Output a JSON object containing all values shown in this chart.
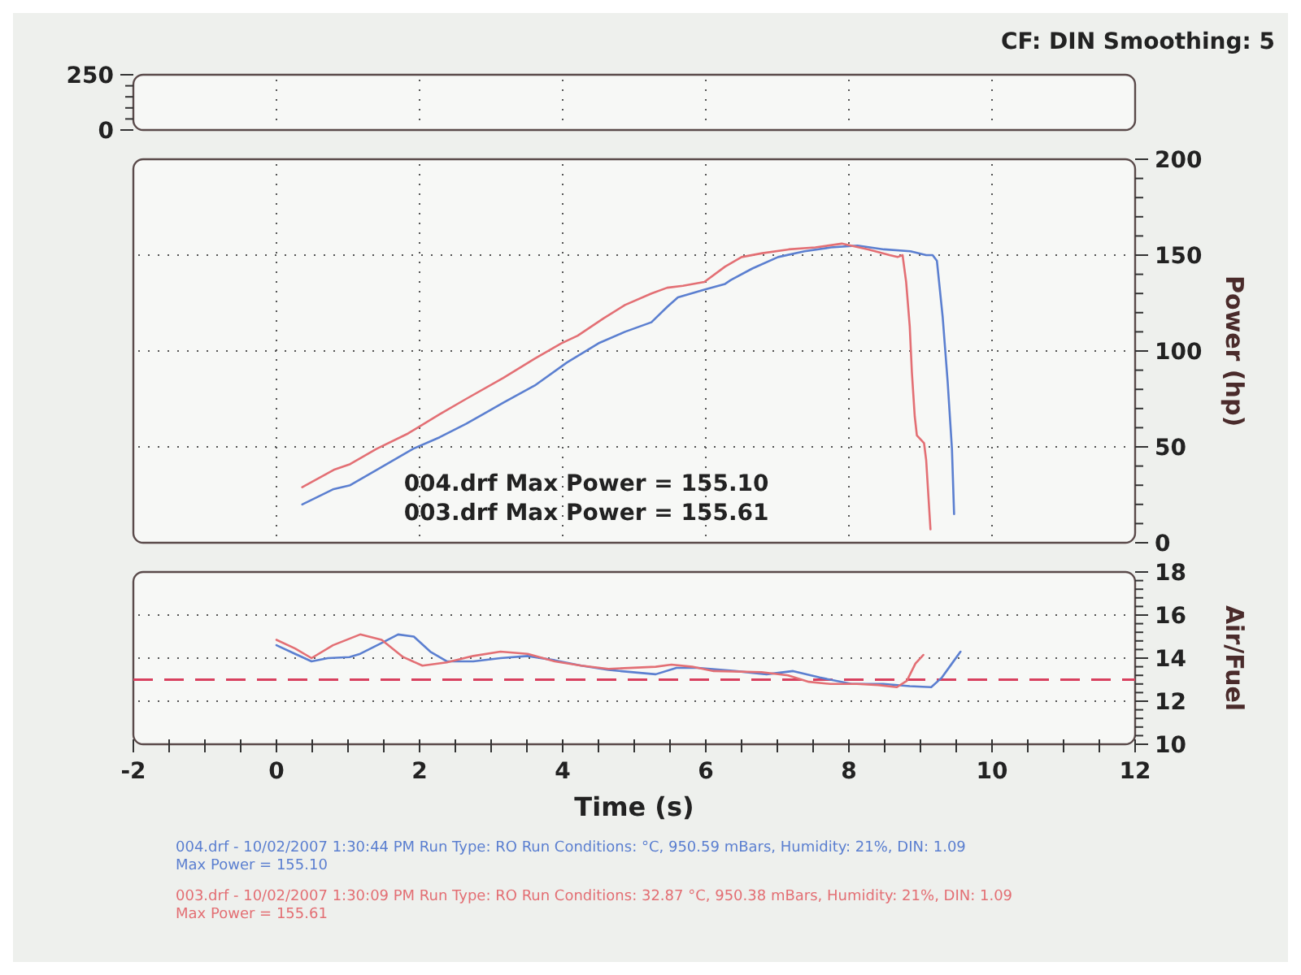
{
  "chart_data": [
    {
      "type": "line",
      "subtitle": "CF: DIN Smoothing: 5",
      "xlim": [
        -2,
        12
      ],
      "xticks": [
        -2,
        0,
        2,
        4,
        6,
        8,
        10,
        12
      ],
      "ylim": [
        0,
        250
      ],
      "yticks": [
        0,
        {
          "value": 50,
          "label": null
        },
        {
          "value": 100,
          "label": null
        },
        {
          "value": 150,
          "label": null
        },
        {
          "value": 200,
          "label": null
        },
        250
      ],
      "tick_labels": "y",
      "grid": "x"
    },
    {
      "type": "line",
      "ylabel": "Power (hp)",
      "xlim": [
        -2,
        12
      ],
      "xticks": [
        -2,
        0,
        2,
        4,
        6,
        8,
        10,
        12
      ],
      "ylim": [
        0,
        200
      ],
      "yticks": [
        0,
        {
          "value": 10,
          "label": null
        },
        {
          "value": 20,
          "label": null
        },
        {
          "value": 30,
          "label": null
        },
        {
          "value": 40,
          "label": null
        },
        50,
        {
          "value": 60,
          "label": null
        },
        {
          "value": 70,
          "label": null
        },
        {
          "value": 80,
          "label": null
        },
        {
          "value": 90,
          "label": null
        },
        100,
        {
          "value": 110,
          "label": null
        },
        {
          "value": 120,
          "label": null
        },
        {
          "value": 130,
          "label": null
        },
        {
          "value": 140,
          "label": null
        },
        150,
        {
          "value": 160,
          "label": null
        },
        {
          "value": 170,
          "label": null
        },
        {
          "value": 180,
          "label": null
        },
        {
          "value": 190,
          "label": null
        },
        200
      ],
      "tick_labels": "y",
      "grid": true,
      "annotations": [
        "004.drf Max Power = 155.10",
        "003.drf Max Power = 155.61"
      ],
      "series": [
        {
          "color": "#5b7fd0",
          "x": [
            0.36,
            0.8,
            1.03,
            1.4,
            1.91,
            2.28,
            2.65,
            3.17,
            3.61,
            4.06,
            4.5,
            4.87,
            5.24,
            5.46,
            5.61,
            5.98,
            6.27,
            6.35,
            6.65,
            7.01,
            7.38,
            7.75,
            8.12,
            8.49,
            8.86,
            9.08,
            9.17,
            9.23,
            9.31,
            9.38,
            9.44,
            9.47
          ],
          "values": [
            20,
            28,
            30,
            38,
            49,
            55,
            62,
            73,
            82,
            94,
            104,
            110,
            115,
            123,
            128,
            132,
            135,
            137,
            143,
            149,
            152,
            154,
            155,
            153,
            152,
            150,
            150,
            147,
            118,
            84,
            49,
            15
          ]
        },
        {
          "color": "#e36f74",
          "x": [
            0.36,
            0.8,
            1.03,
            1.4,
            1.84,
            2.28,
            2.65,
            3.17,
            3.61,
            3.98,
            4.21,
            4.57,
            4.87,
            5.24,
            5.46,
            5.68,
            5.98,
            6.27,
            6.5,
            6.79,
            7.16,
            7.53,
            7.9,
            8.27,
            8.57,
            8.68,
            8.75,
            8.8,
            8.85,
            8.88,
            8.92,
            8.95,
            9.05,
            9.08,
            9.14
          ],
          "values": [
            29,
            38,
            41,
            49,
            57,
            67,
            75,
            86,
            96,
            104,
            108,
            117,
            124,
            130,
            133,
            134,
            136,
            144,
            149,
            151,
            153,
            154,
            156,
            153,
            150,
            149,
            150,
            136,
            113,
            89,
            66,
            56,
            52,
            43,
            7
          ]
        }
      ]
    },
    {
      "type": "line",
      "xlabel": "Time (s)",
      "ylabel": "Air/Fuel",
      "xlim": [
        -2,
        12
      ],
      "xticks": [
        -2,
        {
          "value": -1.5,
          "label": null
        },
        {
          "value": -1,
          "label": null
        },
        {
          "value": -0.5,
          "label": null
        },
        0,
        {
          "value": 0.5,
          "label": null
        },
        {
          "value": 1,
          "label": null
        },
        {
          "value": 1.5,
          "label": null
        },
        2,
        {
          "value": 2.5,
          "label": null
        },
        {
          "value": 3,
          "label": null
        },
        {
          "value": 3.5,
          "label": null
        },
        4,
        {
          "value": 4.5,
          "label": null
        },
        {
          "value": 5,
          "label": null
        },
        {
          "value": 5.5,
          "label": null
        },
        6,
        {
          "value": 6.5,
          "label": null
        },
        {
          "value": 7,
          "label": null
        },
        {
          "value": 7.5,
          "label": null
        },
        8,
        {
          "value": 8.5,
          "label": null
        },
        {
          "value": 9,
          "label": null
        },
        {
          "value": 9.5,
          "label": null
        },
        10,
        {
          "value": 10.5,
          "label": null
        },
        {
          "value": 11,
          "label": null
        },
        {
          "value": 11.5,
          "label": null
        },
        12
      ],
      "ylim": [
        10,
        18
      ],
      "yticks": [
        10,
        {
          "value": 10.4,
          "label": null
        },
        {
          "value": 10.8,
          "label": null
        },
        {
          "value": 11.2,
          "label": null
        },
        {
          "value": 11.6,
          "label": null
        },
        12,
        {
          "value": 12.4,
          "label": null
        },
        {
          "value": 12.8,
          "label": null
        },
        {
          "value": 13.2,
          "label": null
        },
        {
          "value": 13.6,
          "label": null
        },
        14,
        {
          "value": 14.4,
          "label": null
        },
        {
          "value": 14.8,
          "label": null
        },
        {
          "value": 15.2,
          "label": null
        },
        {
          "value": 15.6,
          "label": null
        },
        16,
        {
          "value": 16.4,
          "label": null
        },
        {
          "value": 16.8,
          "label": null
        },
        {
          "value": 17.2,
          "label": null
        },
        {
          "value": 17.6,
          "label": null
        },
        18
      ],
      "grid": "y",
      "ref_lines": [
        {
          "axis": "y",
          "value": 13,
          "color": "#d8405e",
          "line_style": "dashed"
        }
      ],
      "annotations": [
        "004.drf - 10/02/2007 1:30:44 PM Run Type: RO Run Conditions: °C, 950.59 mBars, Humidity: 21%, DIN: 1.09\nMax Power = 155.10",
        "003.drf - 10/02/2007 1:30:09 PM Run Type: RO Run Conditions: 32.87 °C, 950.38 mBars, Humidity: 21%, DIN: 1.09\nMax Power = 155.61"
      ],
      "series": [
        {
          "color": "#5b7fd0",
          "x": [
            0,
            0.26,
            0.49,
            0.72,
            1.02,
            1.17,
            1.47,
            1.7,
            1.92,
            2.15,
            2.38,
            2.75,
            3.13,
            3.51,
            3.89,
            4.26,
            4.64,
            5.3,
            5.59,
            5.89,
            6.41,
            6.85,
            7.22,
            7.59,
            8.04,
            8.48,
            8.85,
            9.15,
            9.3,
            9.44,
            9.56
          ],
          "values": [
            14.6,
            14.2,
            13.85,
            14,
            14.05,
            14.2,
            14.7,
            15.1,
            15,
            14.3,
            13.85,
            13.85,
            14,
            14.1,
            13.9,
            13.65,
            13.45,
            13.25,
            13.55,
            13.55,
            13.4,
            13.25,
            13.4,
            13.1,
            12.8,
            12.8,
            12.7,
            12.65,
            13.1,
            13.75,
            14.3
          ]
        },
        {
          "color": "#e36f74",
          "x": [
            0,
            0.26,
            0.49,
            0.79,
            1.17,
            1.47,
            1.77,
            2.04,
            2.38,
            2.75,
            3.13,
            3.51,
            3.89,
            4.26,
            4.64,
            5.3,
            5.52,
            5.81,
            6.11,
            6.78,
            7.15,
            7.44,
            7.74,
            8.11,
            8.41,
            8.67,
            8.81,
            8.93,
            9.04
          ],
          "values": [
            14.85,
            14.45,
            14,
            14.6,
            15.1,
            14.85,
            14.05,
            13.65,
            13.8,
            14.1,
            14.3,
            14.2,
            13.85,
            13.65,
            13.5,
            13.6,
            13.7,
            13.6,
            13.4,
            13.35,
            13.2,
            12.9,
            12.8,
            12.8,
            12.75,
            12.65,
            12.95,
            13.75,
            14.15
          ]
        }
      ]
    }
  ]
}
